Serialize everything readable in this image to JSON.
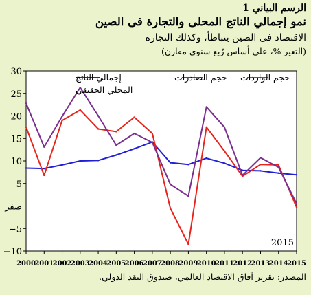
{
  "header": {
    "figure_label": "الرسم البياني 1",
    "title": "نمو إجمالي الناتج المحلى والتجارة فى الصين",
    "subtitle": "الاقتصاد فى الصين يتباطأ، وكذلك التجارة",
    "note": "(التغير %، على أساس رُبع سنوي مقارن)"
  },
  "source": "المصدر: تقرير آفاق الاقتصاد العالمي، صندوق النقد الدولي.",
  "chart_data": {
    "type": "line",
    "x": [
      2000,
      2001,
      2002,
      2003,
      2004,
      2005,
      2006,
      2007,
      2008,
      2009,
      2010,
      2011,
      2012,
      2013,
      2014,
      2015
    ],
    "x_tick_labels": [
      "2000",
      "2001",
      "2002",
      "2003",
      "2004",
      "2005",
      "2006",
      "2007",
      "2008",
      "2009",
      "2010",
      "2011",
      "2012",
      "2013",
      "2014",
      "2015"
    ],
    "ylim": [
      -10,
      30
    ],
    "y_ticks": [
      -10,
      -5,
      0,
      5,
      10,
      15,
      20,
      25,
      30
    ],
    "y_tick_labels": [
      "−10",
      "−5",
      "صفر",
      "5",
      "10",
      "15",
      "20",
      "25",
      "30"
    ],
    "grid": false,
    "corner_label": "2015",
    "series": [
      {
        "name": "إجمالي الناتج المحلي الحقيقي",
        "color": "#1f1fd6",
        "values": [
          8.4,
          8.3,
          9.1,
          10.0,
          10.1,
          11.3,
          12.7,
          14.2,
          9.6,
          9.2,
          10.6,
          9.5,
          7.9,
          7.8,
          7.3,
          6.9
        ]
      },
      {
        "name": "حجم الواردات",
        "color": "#e8231c",
        "values": [
          17.5,
          6.8,
          19.0,
          21.3,
          17.1,
          16.5,
          19.7,
          16.1,
          -0.5,
          -8.5,
          17.5,
          12.2,
          6.6,
          9.2,
          9.1,
          -0.3
        ]
      },
      {
        "name": "حجم الصادرات",
        "color": "#7a2f8e",
        "values": [
          22.8,
          13.1,
          19.9,
          26.3,
          20.0,
          13.5,
          16.1,
          14.1,
          4.8,
          2.2,
          22.0,
          17.5,
          6.8,
          10.7,
          8.6,
          0.5
        ]
      }
    ]
  }
}
